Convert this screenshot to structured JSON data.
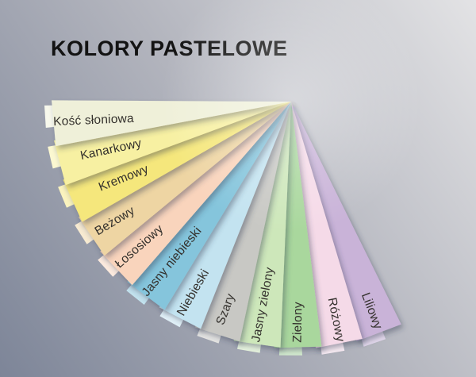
{
  "title": "KOLORY PASTELOWE",
  "title_color": "#131313",
  "background": {
    "light": "#e3e3e5",
    "mid": "#b2b4bd",
    "dark": "#7d8598"
  },
  "fan": {
    "label_text_color": "#33302c",
    "swatches": [
      {
        "label": "Kość słoniowa",
        "color": "#eff0d9"
      },
      {
        "label": "Kanarkowy",
        "color": "#f7f0a2"
      },
      {
        "label": "Kremowy",
        "color": "#f5e77c"
      },
      {
        "label": "Beżowy",
        "color": "#eed5a3"
      },
      {
        "label": "Łososiowy",
        "color": "#f9d4bc"
      },
      {
        "label": "Jasny niebieski",
        "color": "#85c5dc"
      },
      {
        "label": "Niebieski",
        "color": "#c3e3f0"
      },
      {
        "label": "Szary",
        "color": "#c8c8c4"
      },
      {
        "label": "Jasny zielony",
        "color": "#cde7ba"
      },
      {
        "label": "Zielony",
        "color": "#a9d79d"
      },
      {
        "label": "Różowy",
        "color": "#f5dae8"
      },
      {
        "label": "Liliowy",
        "color": "#c9b3d8"
      }
    ]
  }
}
